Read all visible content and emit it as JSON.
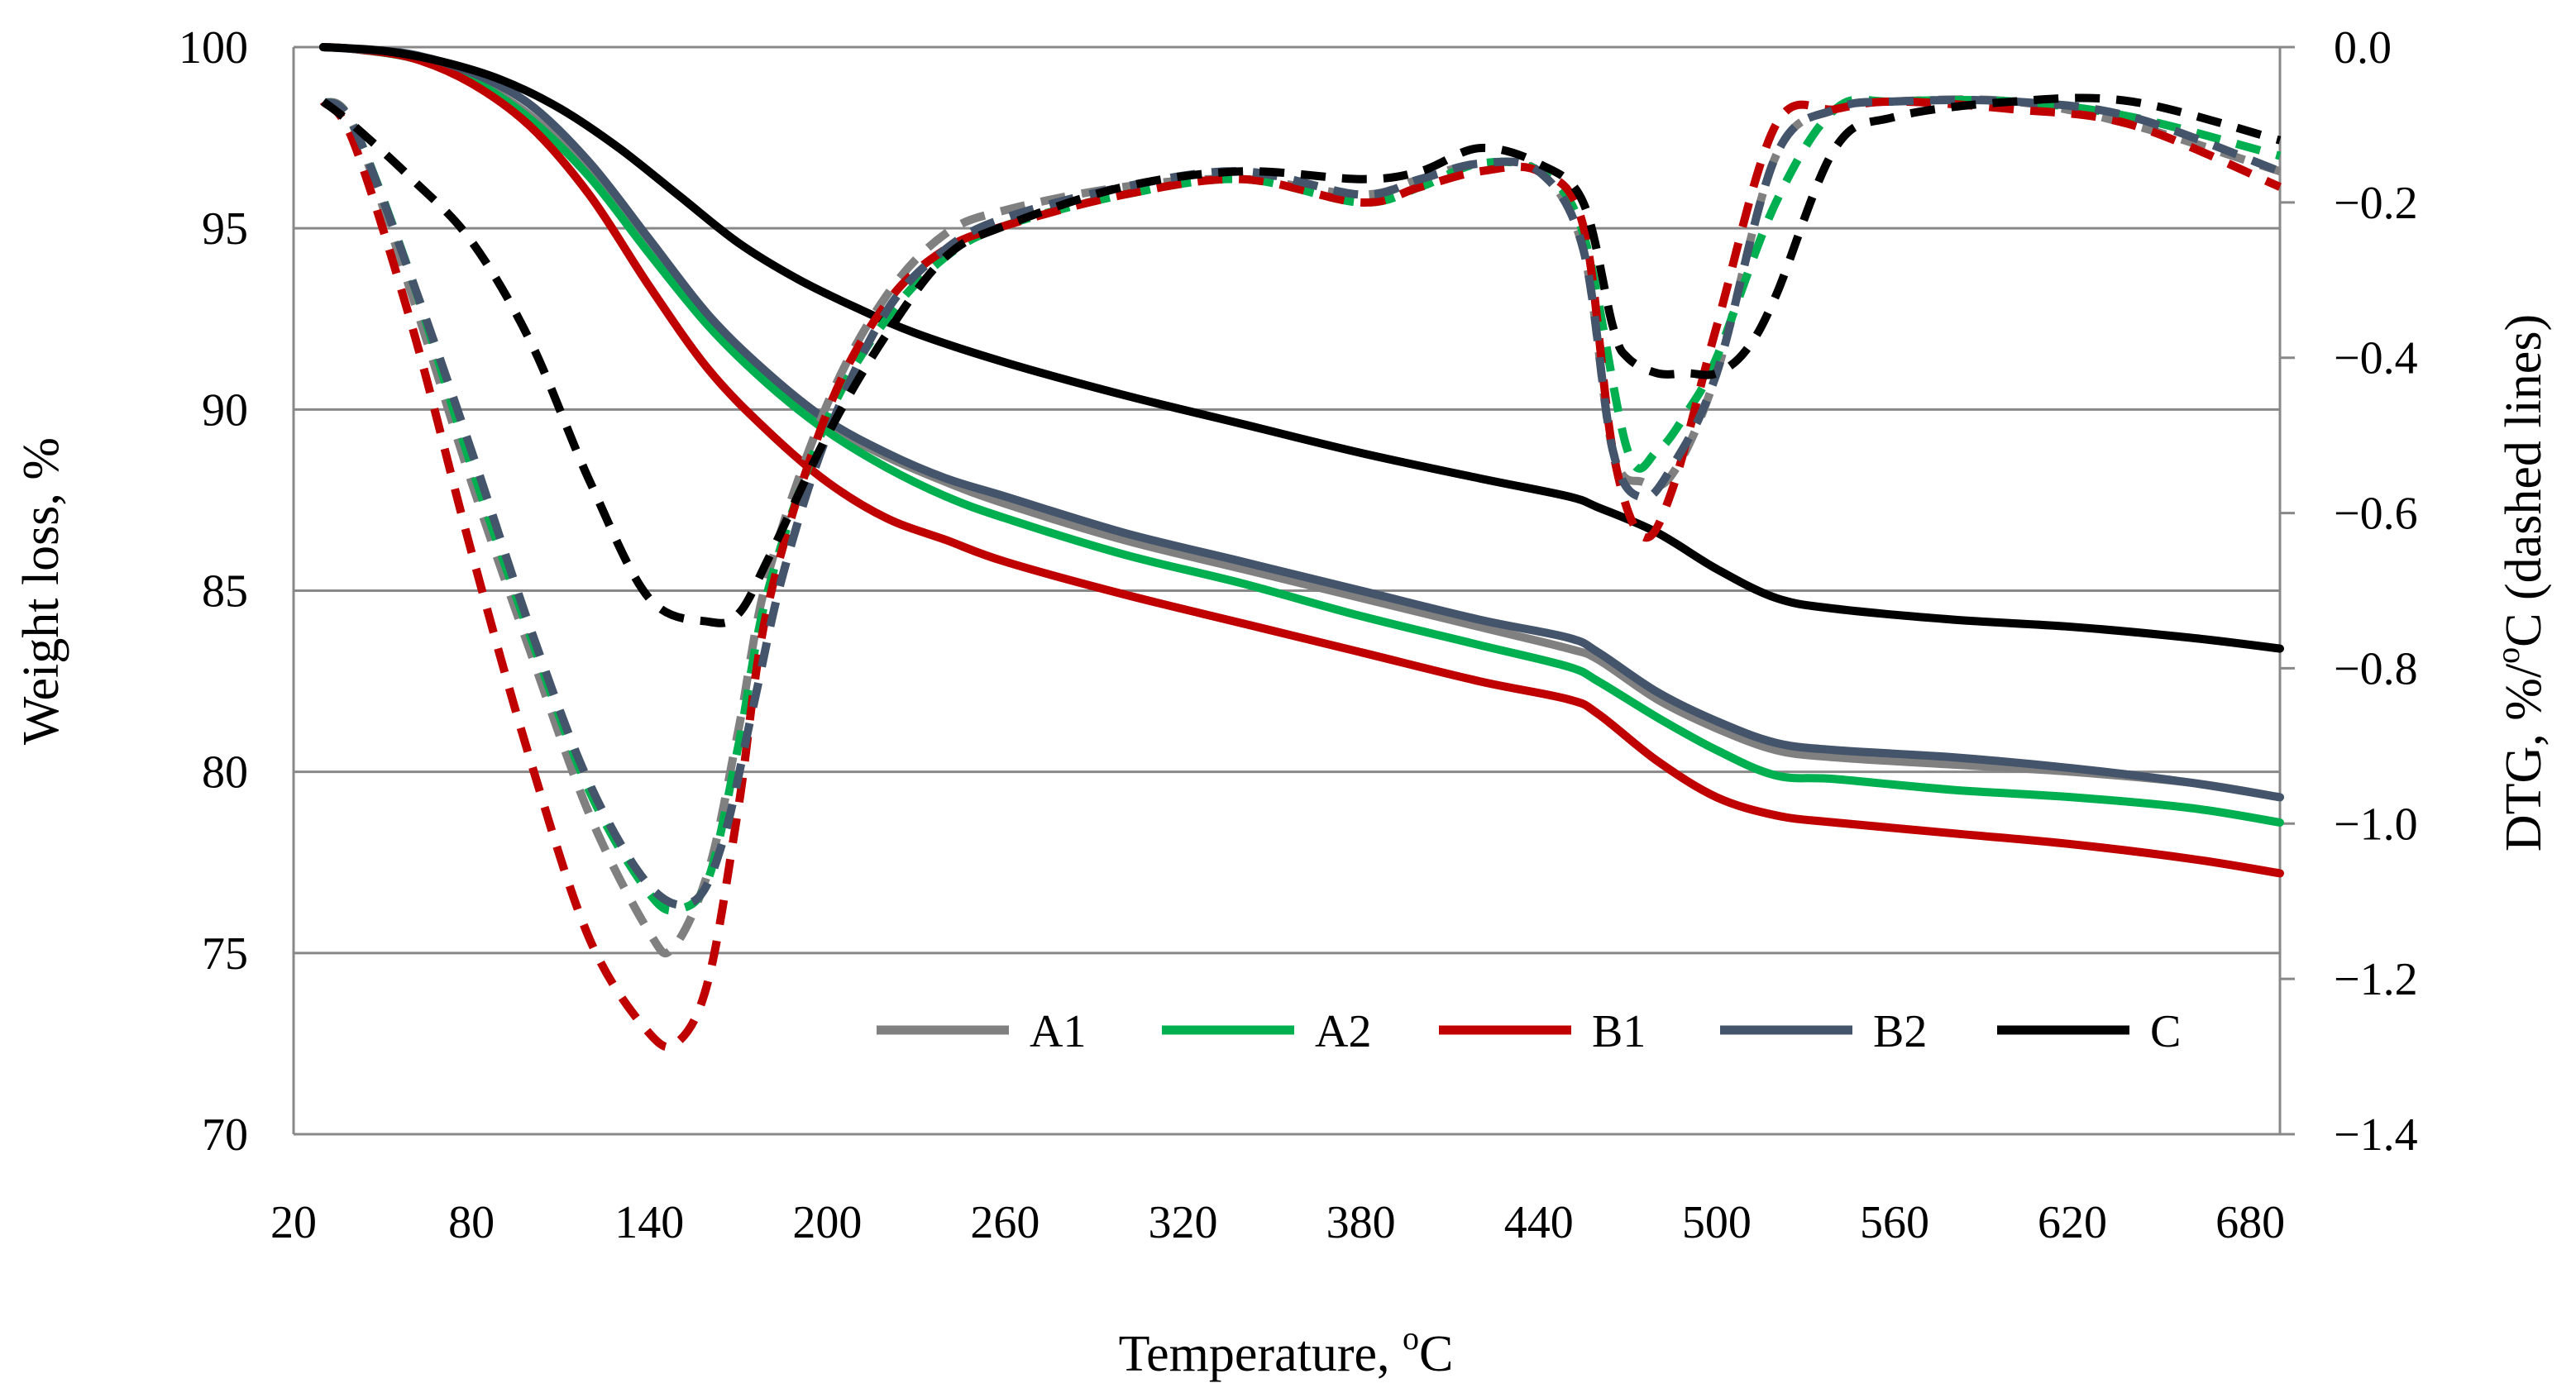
{
  "chart_data": {
    "type": "line",
    "title": "",
    "xlabel": "Temperature, °C",
    "xlabel_main": "Temperature, ",
    "xlabel_sup": "o",
    "xlabel_unit": "C",
    "ylabel": "Weight loss, %",
    "y2label": "DTG, %/°C (dashed lines)",
    "y2label_pre": "DTG, %/",
    "y2label_sup": "o",
    "y2label_post": "C (dashed lines)",
    "xlim": [
      20,
      690
    ],
    "ylim": [
      70,
      100
    ],
    "y2lim": [
      -1.4,
      0.0
    ],
    "grid": true,
    "legend_position": "bottom-right",
    "x_ticks": [
      20,
      80,
      140,
      200,
      260,
      320,
      380,
      440,
      500,
      560,
      620,
      680
    ],
    "x_tick_labels": [
      "20",
      "80",
      "140",
      "200",
      "260",
      "320",
      "380",
      "440",
      "500",
      "560",
      "620",
      "680"
    ],
    "y_ticks": [
      70,
      75,
      80,
      85,
      90,
      95,
      100
    ],
    "y_tick_labels": [
      "70",
      "75",
      "80",
      "85",
      "90",
      "95",
      "100"
    ],
    "y2_ticks": [
      0.0,
      -0.2,
      -0.4,
      -0.6,
      -0.8,
      -1.0,
      -1.2,
      -1.4
    ],
    "y2_tick_labels": [
      "0.0",
      "−0.2",
      "−0.4",
      "−0.6",
      "−0.8",
      "−1.0",
      "−1.2",
      "−1.4"
    ],
    "legend": [
      "A1",
      "A2",
      "B1",
      "B2",
      "C"
    ],
    "series": [
      {
        "name": "A1",
        "color": "#808080",
        "tg": {
          "x": [
            30,
            40,
            60,
            80,
            100,
            120,
            140,
            160,
            180,
            200,
            220,
            240,
            260,
            300,
            340,
            380,
            420,
            450,
            460,
            480,
            500,
            520,
            540,
            580,
            620,
            660,
            690
          ],
          "y": [
            100,
            99.95,
            99.7,
            99.1,
            98.1,
            96.5,
            94.4,
            92.4,
            90.9,
            89.6,
            88.7,
            88.0,
            87.4,
            86.4,
            85.6,
            84.8,
            84.0,
            83.4,
            83.1,
            82.0,
            81.2,
            80.6,
            80.4,
            80.2,
            80.0,
            79.7,
            79.3
          ]
        },
        "dtg": {
          "x": [
            30,
            40,
            60,
            80,
            100,
            120,
            140,
            148,
            160,
            170,
            180,
            200,
            220,
            240,
            260,
            300,
            340,
            380,
            400,
            420,
            440,
            455,
            465,
            475,
            485,
            500,
            520,
            540,
            560,
            600,
            640,
            690
          ],
          "y": [
            -0.07,
            -0.1,
            -0.32,
            -0.56,
            -0.78,
            -0.99,
            -1.14,
            -1.16,
            -1.06,
            -0.88,
            -0.68,
            -0.46,
            -0.32,
            -0.24,
            -0.21,
            -0.18,
            -0.17,
            -0.19,
            -0.17,
            -0.15,
            -0.16,
            -0.26,
            -0.52,
            -0.56,
            -0.55,
            -0.42,
            -0.14,
            -0.08,
            -0.07,
            -0.07,
            -0.1,
            -0.16
          ]
        }
      },
      {
        "name": "A2",
        "color": "#00b050",
        "tg": {
          "x": [
            30,
            40,
            60,
            80,
            100,
            120,
            140,
            160,
            180,
            200,
            220,
            240,
            260,
            300,
            340,
            380,
            420,
            450,
            460,
            480,
            500,
            520,
            540,
            580,
            620,
            660,
            690
          ],
          "y": [
            100,
            99.95,
            99.7,
            99.1,
            98.0,
            96.4,
            94.3,
            92.3,
            90.7,
            89.4,
            88.4,
            87.6,
            87.0,
            86.0,
            85.2,
            84.3,
            83.5,
            82.9,
            82.5,
            81.5,
            80.6,
            79.9,
            79.8,
            79.5,
            79.3,
            79.0,
            78.6
          ]
        },
        "dtg": {
          "x": [
            30,
            40,
            60,
            80,
            100,
            120,
            140,
            150,
            160,
            170,
            180,
            200,
            220,
            240,
            260,
            300,
            340,
            380,
            400,
            420,
            440,
            455,
            470,
            480,
            490,
            500,
            520,
            540,
            560,
            600,
            640,
            690
          ],
          "y": [
            -0.07,
            -0.1,
            -0.3,
            -0.54,
            -0.76,
            -0.96,
            -1.09,
            -1.11,
            -1.07,
            -0.9,
            -0.7,
            -0.48,
            -0.35,
            -0.27,
            -0.23,
            -0.19,
            -0.17,
            -0.2,
            -0.18,
            -0.15,
            -0.16,
            -0.24,
            -0.52,
            -0.52,
            -0.47,
            -0.4,
            -0.2,
            -0.08,
            -0.07,
            -0.07,
            -0.09,
            -0.14
          ]
        }
      },
      {
        "name": "B1",
        "color": "#c00000",
        "tg": {
          "x": [
            30,
            40,
            60,
            80,
            100,
            120,
            140,
            160,
            180,
            200,
            220,
            240,
            260,
            300,
            340,
            380,
            420,
            450,
            460,
            480,
            500,
            520,
            540,
            580,
            620,
            660,
            690
          ],
          "y": [
            100,
            99.95,
            99.7,
            99.0,
            97.8,
            95.9,
            93.4,
            91.1,
            89.4,
            88.0,
            87.0,
            86.4,
            85.8,
            84.9,
            84.1,
            83.3,
            82.5,
            82.0,
            81.6,
            80.3,
            79.3,
            78.8,
            78.6,
            78.3,
            78.0,
            77.6,
            77.2
          ]
        },
        "dtg": {
          "x": [
            30,
            40,
            60,
            80,
            100,
            120,
            140,
            150,
            160,
            170,
            180,
            200,
            220,
            240,
            260,
            300,
            340,
            380,
            400,
            420,
            440,
            455,
            465,
            475,
            485,
            500,
            520,
            540,
            560,
            600,
            640,
            690
          ],
          "y": [
            -0.07,
            -0.12,
            -0.36,
            -0.65,
            -0.92,
            -1.15,
            -1.27,
            -1.28,
            -1.2,
            -0.98,
            -0.72,
            -0.47,
            -0.33,
            -0.26,
            -0.23,
            -0.19,
            -0.17,
            -0.2,
            -0.18,
            -0.16,
            -0.16,
            -0.23,
            -0.52,
            -0.63,
            -0.57,
            -0.36,
            -0.1,
            -0.08,
            -0.07,
            -0.08,
            -0.1,
            -0.18
          ]
        }
      },
      {
        "name": "B2",
        "color": "#44546a",
        "tg": {
          "x": [
            30,
            40,
            60,
            80,
            100,
            120,
            140,
            160,
            180,
            200,
            220,
            240,
            260,
            300,
            340,
            380,
            420,
            450,
            460,
            480,
            500,
            520,
            540,
            580,
            620,
            660,
            690
          ],
          "y": [
            100,
            99.95,
            99.8,
            99.3,
            98.4,
            96.8,
            94.7,
            92.6,
            91.0,
            89.7,
            88.8,
            88.1,
            87.6,
            86.6,
            85.8,
            85.0,
            84.2,
            83.7,
            83.3,
            82.2,
            81.4,
            80.8,
            80.6,
            80.4,
            80.1,
            79.7,
            79.3
          ]
        },
        "dtg": {
          "x": [
            30,
            40,
            60,
            80,
            100,
            120,
            140,
            155,
            165,
            175,
            185,
            200,
            220,
            240,
            260,
            300,
            340,
            380,
            400,
            420,
            440,
            455,
            465,
            475,
            485,
            500,
            520,
            540,
            560,
            600,
            640,
            690
          ],
          "y": [
            -0.07,
            -0.1,
            -0.3,
            -0.52,
            -0.75,
            -0.95,
            -1.08,
            -1.1,
            -1.02,
            -0.85,
            -0.68,
            -0.5,
            -0.34,
            -0.26,
            -0.22,
            -0.18,
            -0.16,
            -0.19,
            -0.17,
            -0.15,
            -0.16,
            -0.26,
            -0.52,
            -0.58,
            -0.54,
            -0.42,
            -0.14,
            -0.08,
            -0.07,
            -0.07,
            -0.09,
            -0.16
          ]
        }
      },
      {
        "name": "C",
        "color": "#000000",
        "tg": {
          "x": [
            30,
            50,
            70,
            90,
            110,
            130,
            150,
            170,
            190,
            210,
            230,
            260,
            300,
            340,
            380,
            420,
            450,
            460,
            480,
            500,
            520,
            540,
            580,
            620,
            660,
            690
          ],
          "y": [
            100,
            99.9,
            99.6,
            99.1,
            98.3,
            97.2,
            95.9,
            94.6,
            93.6,
            92.8,
            92.1,
            91.3,
            90.4,
            89.6,
            88.8,
            88.1,
            87.6,
            87.3,
            86.6,
            85.6,
            84.8,
            84.5,
            84.2,
            84.0,
            83.7,
            83.4
          ]
        },
        "dtg": {
          "x": [
            30,
            40,
            60,
            80,
            100,
            120,
            140,
            160,
            170,
            180,
            200,
            220,
            240,
            260,
            300,
            340,
            380,
            400,
            420,
            440,
            455,
            465,
            470,
            480,
            490,
            500,
            510,
            520,
            540,
            560,
            600,
            640,
            690
          ],
          "y": [
            -0.07,
            -0.1,
            -0.17,
            -0.25,
            -0.38,
            -0.56,
            -0.71,
            -0.74,
            -0.73,
            -0.66,
            -0.5,
            -0.37,
            -0.27,
            -0.23,
            -0.18,
            -0.16,
            -0.17,
            -0.16,
            -0.13,
            -0.15,
            -0.2,
            -0.36,
            -0.4,
            -0.42,
            -0.42,
            -0.42,
            -0.39,
            -0.32,
            -0.13,
            -0.09,
            -0.07,
            -0.07,
            -0.12
          ]
        }
      }
    ]
  }
}
